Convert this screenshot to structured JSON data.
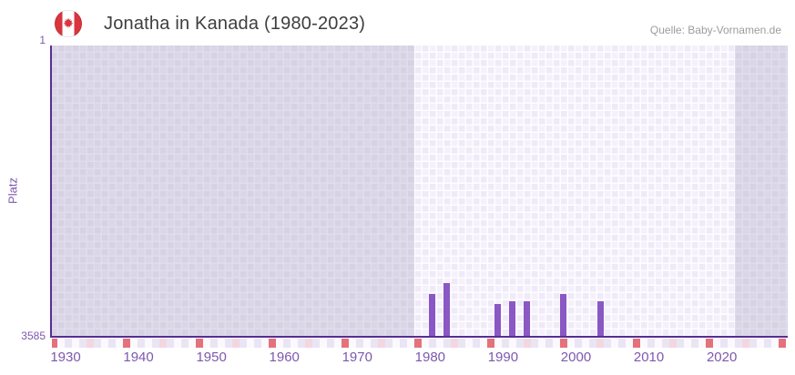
{
  "header": {
    "title": "Jonatha in Kanada (1980-2023)",
    "source": "Quelle: Baby-Vornamen.de"
  },
  "chart_data": {
    "type": "bar",
    "title": "Jonatha in Kanada (1980-2023)",
    "ylabel": "Platz",
    "y_axis": {
      "max_label": "1",
      "min_label": "3585",
      "min": 1,
      "max": 3585,
      "inverted": true
    },
    "x_axis": {
      "decade_labels": [
        1930,
        1940,
        1950,
        1960,
        1970,
        1980,
        1990,
        2000,
        2010,
        2020
      ],
      "first_year": 1929,
      "last_year": 2030
    },
    "coverage_band": {
      "from": 1980,
      "to": 2023
    },
    "grid": true,
    "series": [
      {
        "name": "Platz",
        "points": [
          {
            "year": 1982,
            "value": 3059
          },
          {
            "year": 1984,
            "value": 2921
          },
          {
            "year": 1991,
            "value": 3185
          },
          {
            "year": 1993,
            "value": 3152
          },
          {
            "year": 1995,
            "value": 3152
          },
          {
            "year": 2000,
            "value": 3055
          },
          {
            "year": 2005,
            "value": 3145
          }
        ]
      }
    ],
    "colors": {
      "bar": "#8a57c5",
      "axis_line": "#562e93",
      "tick_label": "#7d58ae",
      "decade_cell": "#e4717b",
      "half_decade_cell": "#f4d6e1",
      "even_year_cell": "#eae5f4",
      "odd_year_cell": "#fbf9fd",
      "flag_red": "#d8353c",
      "title_text": "#3e3e3e",
      "source_text": "#9c9c9c"
    }
  }
}
